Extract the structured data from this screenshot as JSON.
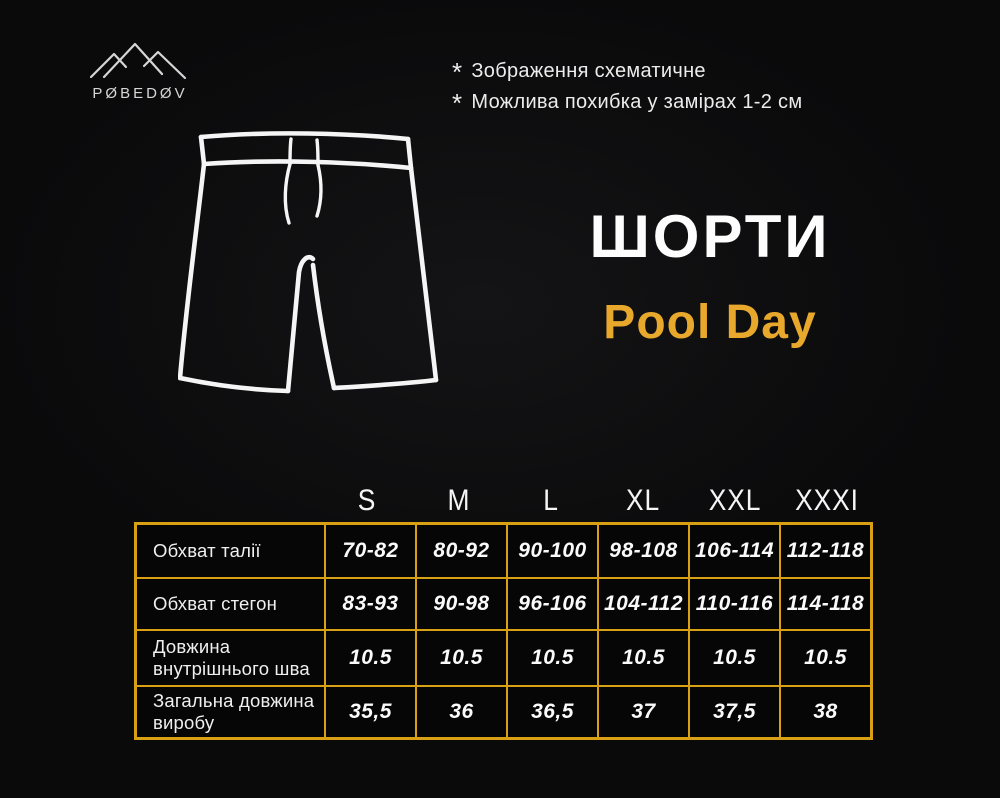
{
  "brand": {
    "logo_text": "PØBEDØV"
  },
  "notes": [
    {
      "bullet": "*",
      "text": "Зображення схематичне"
    },
    {
      "bullet": "*",
      "text": "Можлива похибка у замірах 1-2 см"
    }
  ],
  "title": {
    "main": "ШОРТИ",
    "subtitle": "Pool Day"
  },
  "colors": {
    "gold": "#d9a013",
    "gold2": "#e8a82c",
    "ink": "#f2f2f2",
    "bg": "#0a0a0b"
  },
  "illustration": {
    "name": "shorts-line-drawing"
  },
  "chart_data": {
    "type": "table",
    "title": "ШОРТИ Pool Day",
    "columns": [
      "S",
      "M",
      "L",
      "XL",
      "XXL",
      "XXXI"
    ],
    "rows": [
      {
        "label": "Обхват талії",
        "values": [
          "70-82",
          "80-92",
          "90-100",
          "98-108",
          "106-114",
          "112-118"
        ]
      },
      {
        "label": "Обхват стегон",
        "values": [
          "83-93",
          "90-98",
          "96-106",
          "104-112",
          "110-116",
          "114-118"
        ]
      },
      {
        "label": "Довжина внутрішнього шва",
        "values": [
          "10.5",
          "10.5",
          "10.5",
          "10.5",
          "10.5",
          "10.5"
        ]
      },
      {
        "label": "Загальна довжина виробу",
        "values": [
          "35,5",
          "36",
          "36,5",
          "37",
          "37,5",
          "38"
        ]
      }
    ]
  }
}
